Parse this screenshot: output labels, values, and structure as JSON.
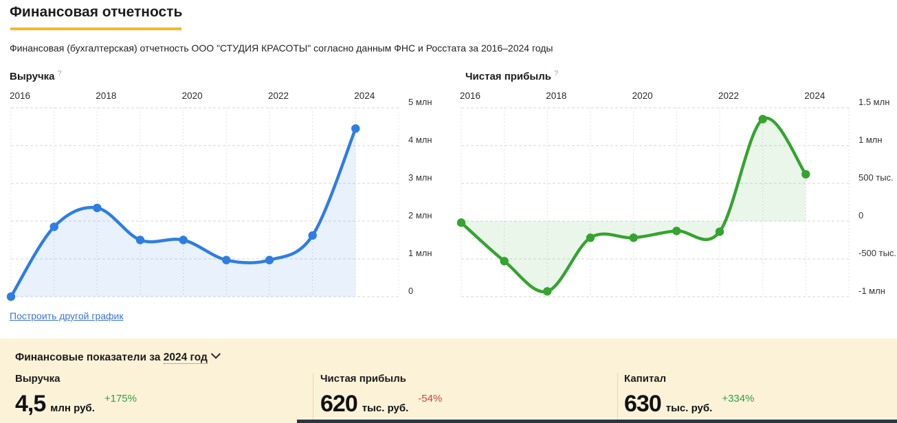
{
  "header": {
    "title": "Финансовая отчетность",
    "subtitle": "Финансовая (бухгалтерская) отчетность ООО \"СТУДИЯ КРАСОТЫ\" согласно данным ФНС и Росстата за 2016–2024 годы",
    "accent_color": "#fcb626"
  },
  "ui": {
    "help_icon": "?",
    "build_other_chart_link": "Построить другой график"
  },
  "chart_data": [
    {
      "type": "line",
      "title": "Выручка",
      "unit": "млн руб.",
      "x": [
        2016,
        2017,
        2018,
        2019,
        2020,
        2021,
        2022,
        2023,
        2024
      ],
      "values": [
        0.0,
        1.85,
        2.35,
        1.5,
        1.5,
        0.97,
        0.97,
        1.62,
        4.45
      ],
      "ylim": [
        0,
        5
      ],
      "baseline": 0,
      "ytick_values": [
        5,
        4,
        3,
        2,
        1,
        0
      ],
      "ytick_labels": [
        "5 млн",
        "4 млн",
        "3 млн",
        "2 млн",
        "1 млн",
        "0"
      ],
      "xtick_labels": [
        "2016",
        "2018",
        "2020",
        "2022",
        "2024"
      ],
      "line_color": "#2e7de4",
      "fill_color": "rgba(46,125,230,0.11)",
      "grid": true,
      "legend": "none",
      "x_axis_position": "top",
      "y_axis_position": "right"
    },
    {
      "type": "line",
      "title": "Чистая прибыль",
      "unit": "тыс. руб.",
      "x": [
        2016,
        2017,
        2018,
        2019,
        2020,
        2021,
        2022,
        2023,
        2024
      ],
      "values": [
        -20,
        -530,
        -930,
        -220,
        -220,
        -130,
        -140,
        1350,
        620
      ],
      "ylim": [
        -1000,
        1500
      ],
      "baseline": 0,
      "ytick_values": [
        1500,
        1000,
        500,
        0,
        -500,
        -1000
      ],
      "ytick_labels": [
        "1.5 млн",
        "1 млн",
        "500 тыс.",
        "0",
        "-500 тыс.",
        "-1 млн"
      ],
      "xtick_labels": [
        "2016",
        "2018",
        "2020",
        "2022",
        "2024"
      ],
      "line_color": "#35a42f",
      "fill_color": "rgba(58,164,47,0.10)",
      "grid": true,
      "legend": "none",
      "x_axis_position": "top",
      "y_axis_position": "right"
    }
  ],
  "panel": {
    "header_prefix": "Финансовые показатели за",
    "period": "2024 год",
    "metrics": [
      {
        "label": "Выручка",
        "value": "4,5",
        "unit": "млн руб.",
        "change": "+175%",
        "change_color": "#2f9e41"
      },
      {
        "label": "Чистая прибыль",
        "value": "620",
        "unit": "тыс. руб.",
        "change": "-54%",
        "change_color": "#c9443c"
      },
      {
        "label": "Капитал",
        "value": "630",
        "unit": "тыс. руб.",
        "change": "+334%",
        "change_color": "#2f9e41"
      }
    ]
  }
}
